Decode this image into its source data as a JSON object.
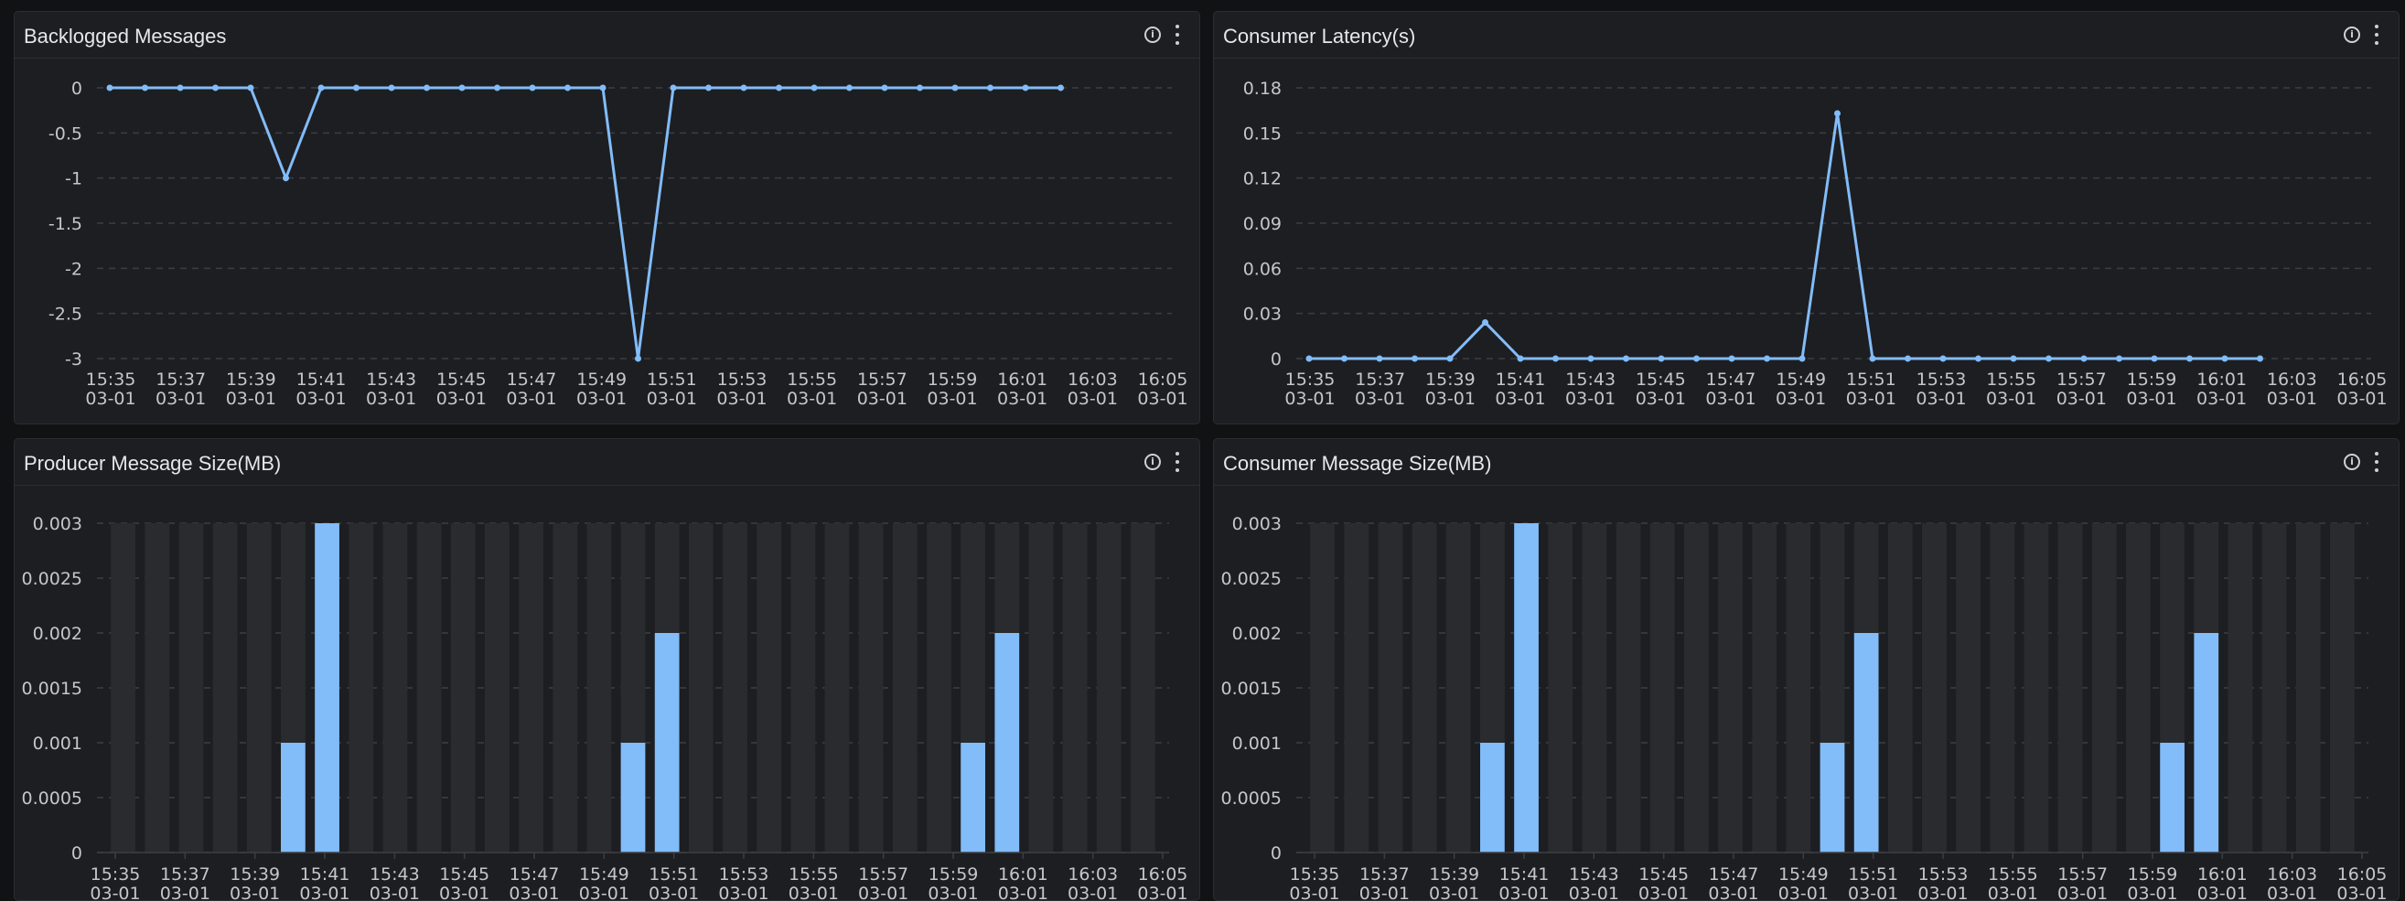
{
  "colors": {
    "series": "#82bcf9",
    "grid": "#3c3e43",
    "bar_bg": "#2a2b2e",
    "tick_text": "#c4c6ca"
  },
  "icons": {
    "info": "info-circle-icon",
    "more": "more-vertical-icon"
  },
  "panels": [
    {
      "title": "Backlogged Messages"
    },
    {
      "title": "Consumer Latency(s)"
    },
    {
      "title": "Producer Message Size(MB)"
    },
    {
      "title": "Consumer Message Size(MB)"
    }
  ],
  "chart_data": [
    {
      "type": "line",
      "title": "Backlogged Messages",
      "x_ticks": [
        "15:35",
        "15:37",
        "15:39",
        "15:41",
        "15:43",
        "15:45",
        "15:47",
        "15:49",
        "15:51",
        "15:53",
        "15:55",
        "15:57",
        "15:59",
        "16:01",
        "16:03",
        "16:05"
      ],
      "x_tick_date": "03-01",
      "x_range": [
        0,
        30
      ],
      "y_ticks": [
        "0",
        "-0.5",
        "-1",
        "-1.5",
        "-2",
        "-2.5",
        "-3"
      ],
      "y_tick_values": [
        0,
        -0.5,
        -1,
        -1.5,
        -2,
        -2.5,
        -3
      ],
      "ylim": [
        -3,
        0
      ],
      "x": [
        0,
        1,
        2,
        3,
        4,
        5,
        6,
        7,
        8,
        9,
        10,
        11,
        12,
        13,
        14,
        15,
        16,
        17,
        18,
        19,
        20,
        21,
        22,
        23,
        24,
        25,
        26,
        27
      ],
      "values": [
        0,
        0,
        0,
        0,
        0,
        -1,
        0,
        0,
        0,
        0,
        0,
        0,
        0,
        0,
        0,
        -3,
        0,
        0,
        0,
        0,
        0,
        0,
        0,
        0,
        0,
        0,
        0,
        0
      ]
    },
    {
      "type": "line",
      "title": "Consumer Latency(s)",
      "x_ticks": [
        "15:35",
        "15:37",
        "15:39",
        "15:41",
        "15:43",
        "15:45",
        "15:47",
        "15:49",
        "15:51",
        "15:53",
        "15:55",
        "15:57",
        "15:59",
        "16:01",
        "16:03",
        "16:05"
      ],
      "x_tick_date": "03-01",
      "x_range": [
        0,
        30
      ],
      "y_ticks": [
        "0.18",
        "0.15",
        "0.12",
        "0.09",
        "0.06",
        "0.03",
        "0"
      ],
      "y_tick_values": [
        0.18,
        0.15,
        0.12,
        0.09,
        0.06,
        0.03,
        0
      ],
      "ylim": [
        0,
        0.18
      ],
      "x": [
        0,
        1,
        2,
        3,
        4,
        5,
        6,
        7,
        8,
        9,
        10,
        11,
        12,
        13,
        14,
        15,
        16,
        17,
        18,
        19,
        20,
        21,
        22,
        23,
        24,
        25,
        26,
        27
      ],
      "values": [
        0,
        0,
        0,
        0,
        0,
        0.024,
        0,
        0,
        0,
        0,
        0,
        0,
        0,
        0,
        0,
        0.163,
        0,
        0,
        0,
        0,
        0,
        0,
        0,
        0,
        0,
        0,
        0,
        0
      ]
    },
    {
      "type": "bar",
      "title": "Producer Message Size(MB)",
      "x_ticks": [
        "15:35",
        "15:37",
        "15:39",
        "15:41",
        "15:43",
        "15:45",
        "15:47",
        "15:49",
        "15:51",
        "15:53",
        "15:55",
        "15:57",
        "15:59",
        "16:01",
        "16:03",
        "16:05"
      ],
      "x_tick_date": "03-01",
      "y_ticks": [
        "0.003",
        "0.0025",
        "0.002",
        "0.0015",
        "0.001",
        "0.0005",
        "0"
      ],
      "y_tick_values": [
        0.003,
        0.0025,
        0.002,
        0.0015,
        0.001,
        0.0005,
        0
      ],
      "ylim": [
        0,
        0.003
      ],
      "bar_count": 31,
      "values": [
        0,
        0,
        0,
        0,
        0,
        0.001,
        0.003,
        0,
        0,
        0,
        0,
        0,
        0,
        0,
        0,
        0.001,
        0.002,
        0,
        0,
        0,
        0,
        0,
        0,
        0,
        0,
        0.001,
        0.002,
        0,
        0,
        0,
        0
      ]
    },
    {
      "type": "bar",
      "title": "Consumer Message Size(MB)",
      "x_ticks": [
        "15:35",
        "15:37",
        "15:39",
        "15:41",
        "15:43",
        "15:45",
        "15:47",
        "15:49",
        "15:51",
        "15:53",
        "15:55",
        "15:57",
        "15:59",
        "16:01",
        "16:03",
        "16:05"
      ],
      "x_tick_date": "03-01",
      "y_ticks": [
        "0.003",
        "0.0025",
        "0.002",
        "0.0015",
        "0.001",
        "0.0005",
        "0"
      ],
      "y_tick_values": [
        0.003,
        0.0025,
        0.002,
        0.0015,
        0.001,
        0.0005,
        0
      ],
      "ylim": [
        0,
        0.003
      ],
      "bar_count": 31,
      "values": [
        0,
        0,
        0,
        0,
        0,
        0.001,
        0.003,
        0,
        0,
        0,
        0,
        0,
        0,
        0,
        0,
        0.001,
        0.002,
        0,
        0,
        0,
        0,
        0,
        0,
        0,
        0,
        0.001,
        0.002,
        0,
        0,
        0,
        0
      ]
    }
  ]
}
